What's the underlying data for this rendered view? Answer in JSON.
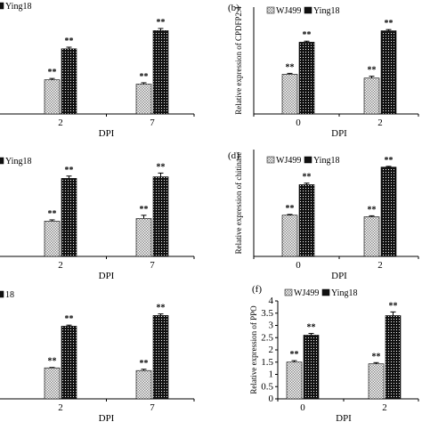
{
  "colors": {
    "wj499_pattern": "#bdbdbd",
    "ying18_fill": "#111111",
    "axis": "#000000"
  },
  "chart_data": [
    {
      "type": "bar",
      "panel_label": "",
      "ylabel": "",
      "xlabel": "DPI",
      "categories": [
        "2",
        "7"
      ],
      "legend": [
        "",
        "Ying18"
      ],
      "legend_position": "top-left",
      "ylim": [
        0,
        10
      ],
      "y_ticks_visible": false,
      "series": [
        {
          "name": "",
          "values": [
            3.2,
            2.8
          ],
          "errors": [
            0.12,
            0.12
          ],
          "significance": [
            "**",
            "**"
          ]
        },
        {
          "name": "Ying18",
          "values": [
            6.1,
            7.8
          ],
          "errors": [
            0.15,
            0.2
          ],
          "significance": [
            "**",
            "**"
          ]
        }
      ]
    },
    {
      "type": "bar",
      "panel_label": "(b)",
      "ylabel": "Relative expression of CPDFP2.4",
      "xlabel": "DPI",
      "categories": [
        "0",
        "2"
      ],
      "legend": [
        "WJ499",
        "Ying18"
      ],
      "legend_position": "top",
      "ylim": [
        0,
        7
      ],
      "y_ticks_visible": false,
      "series": [
        {
          "name": "WJ499",
          "values": [
            2.6,
            2.35
          ],
          "errors": [
            0.06,
            0.12
          ],
          "significance": [
            "**",
            "**"
          ]
        },
        {
          "name": "Ying18",
          "values": [
            4.7,
            5.45
          ],
          "errors": [
            0.07,
            0.08
          ],
          "significance": [
            "**",
            "**"
          ]
        }
      ]
    },
    {
      "type": "bar",
      "panel_label": "",
      "ylabel": "",
      "xlabel": "DPI",
      "categories": [
        "2",
        "7"
      ],
      "legend": [
        "",
        "Ying18"
      ],
      "legend_position": "top-left",
      "ylim": [
        0,
        10
      ],
      "y_ticks_visible": false,
      "series": [
        {
          "name": "",
          "values": [
            3.3,
            3.55
          ],
          "errors": [
            0.12,
            0.3
          ],
          "significance": [
            "**",
            "**"
          ]
        },
        {
          "name": "Ying18",
          "values": [
            7.3,
            7.45
          ],
          "errors": [
            0.22,
            0.35
          ],
          "significance": [
            "**",
            "**"
          ]
        }
      ]
    },
    {
      "type": "bar",
      "panel_label": "(d)",
      "ylabel": "Relative expression of chitinase",
      "xlabel": "DPI",
      "categories": [
        "0",
        "2"
      ],
      "legend": [
        "WJ499",
        "Ying18"
      ],
      "legend_position": "top",
      "ylim": [
        0,
        7
      ],
      "y_ticks_visible": false,
      "series": [
        {
          "name": "WJ499",
          "values": [
            2.7,
            2.6
          ],
          "errors": [
            0.05,
            0.06
          ],
          "significance": [
            "**",
            "**"
          ]
        },
        {
          "name": "Ying18",
          "values": [
            4.7,
            5.85
          ],
          "errors": [
            0.1,
            0.05
          ],
          "significance": [
            "**",
            "**"
          ]
        }
      ]
    },
    {
      "type": "bar",
      "panel_label": "",
      "ylabel": "",
      "xlabel": "DPI",
      "categories": [
        "2",
        "7"
      ],
      "legend": [
        "",
        "18"
      ],
      "legend_position": "top-left",
      "ylim": [
        0,
        10
      ],
      "y_ticks_visible": false,
      "series": [
        {
          "name": "",
          "values": [
            2.9,
            2.65
          ],
          "errors": [
            0.04,
            0.12
          ],
          "significance": [
            "**",
            "**"
          ]
        },
        {
          "name": "18",
          "values": [
            6.8,
            7.8
          ],
          "errors": [
            0.1,
            0.15
          ],
          "significance": [
            "**",
            "**"
          ]
        }
      ]
    },
    {
      "type": "bar",
      "panel_label": "(f)",
      "ylabel": "Relative expression of PPO",
      "xlabel": "DPI",
      "categories": [
        "0",
        "2"
      ],
      "legend": [
        "WJ499",
        "Ying18"
      ],
      "legend_position": "top",
      "ylim": [
        0,
        4
      ],
      "y_ticks": [
        "0",
        "0.5",
        "1",
        "1.5",
        "2",
        "2.5",
        "3",
        "3.5",
        "4"
      ],
      "y_ticks_visible": true,
      "series": [
        {
          "name": "WJ499",
          "values": [
            1.5,
            1.43
          ],
          "errors": [
            0.06,
            0.05
          ],
          "significance": [
            "**",
            "**"
          ]
        },
        {
          "name": "Ying18",
          "values": [
            2.6,
            3.4
          ],
          "errors": [
            0.07,
            0.15
          ],
          "significance": [
            "**",
            "**"
          ]
        }
      ]
    }
  ]
}
